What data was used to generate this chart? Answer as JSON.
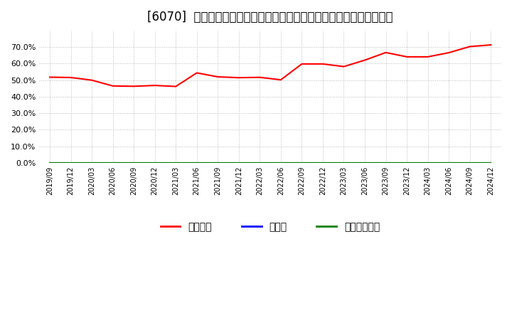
{
  "title": "[6070]  自己資本、のれん、繰延税金資産の総資産に対する比率の推移",
  "x_labels": [
    "2019/09",
    "2019/12",
    "2020/03",
    "2020/06",
    "2020/09",
    "2020/12",
    "2021/03",
    "2021/06",
    "2021/09",
    "2021/12",
    "2022/03",
    "2022/06",
    "2022/09",
    "2022/12",
    "2023/03",
    "2023/06",
    "2023/09",
    "2023/12",
    "2024/03",
    "2024/06",
    "2024/09",
    "2024/12"
  ],
  "series": [
    {
      "name": "自己資本",
      "color": "#ff0000",
      "values": [
        0.518,
        0.516,
        0.5,
        0.465,
        0.463,
        0.468,
        0.462,
        0.544,
        0.52,
        0.515,
        0.517,
        0.502,
        0.598,
        0.598,
        0.582,
        0.621,
        0.667,
        0.641,
        0.641,
        0.666,
        0.703,
        0.713
      ]
    },
    {
      "name": "のれん",
      "color": "#0000ff",
      "values": [
        0.0,
        0.0,
        0.0,
        0.0,
        0.0,
        0.0,
        0.0,
        0.0,
        0.0,
        0.0,
        0.0,
        0.0,
        0.0,
        0.0,
        0.0,
        0.0,
        0.0,
        0.0,
        0.0,
        0.0,
        0.0,
        0.0
      ]
    },
    {
      "name": "繰延税金資産",
      "color": "#008000",
      "values": [
        0.0,
        0.0,
        0.0,
        0.0,
        0.0,
        0.0,
        0.0,
        0.0,
        0.0,
        0.0,
        0.0,
        0.0,
        0.0,
        0.0,
        0.0,
        0.0,
        0.0,
        0.0,
        0.0,
        0.0,
        0.0,
        0.0
      ]
    }
  ],
  "ylim": [
    0.0,
    0.8
  ],
  "yticks": [
    0.0,
    0.1,
    0.2,
    0.3,
    0.4,
    0.5,
    0.6,
    0.7
  ],
  "background_color": "#ffffff",
  "plot_bg_color": "#ffffff",
  "grid_color": "#bbbbbb",
  "title_fontsize": 12,
  "legend_labels": [
    "自己資本",
    "のれん",
    "繰延税金資産"
  ],
  "legend_colors": [
    "#ff0000",
    "#0000ff",
    "#008000"
  ]
}
